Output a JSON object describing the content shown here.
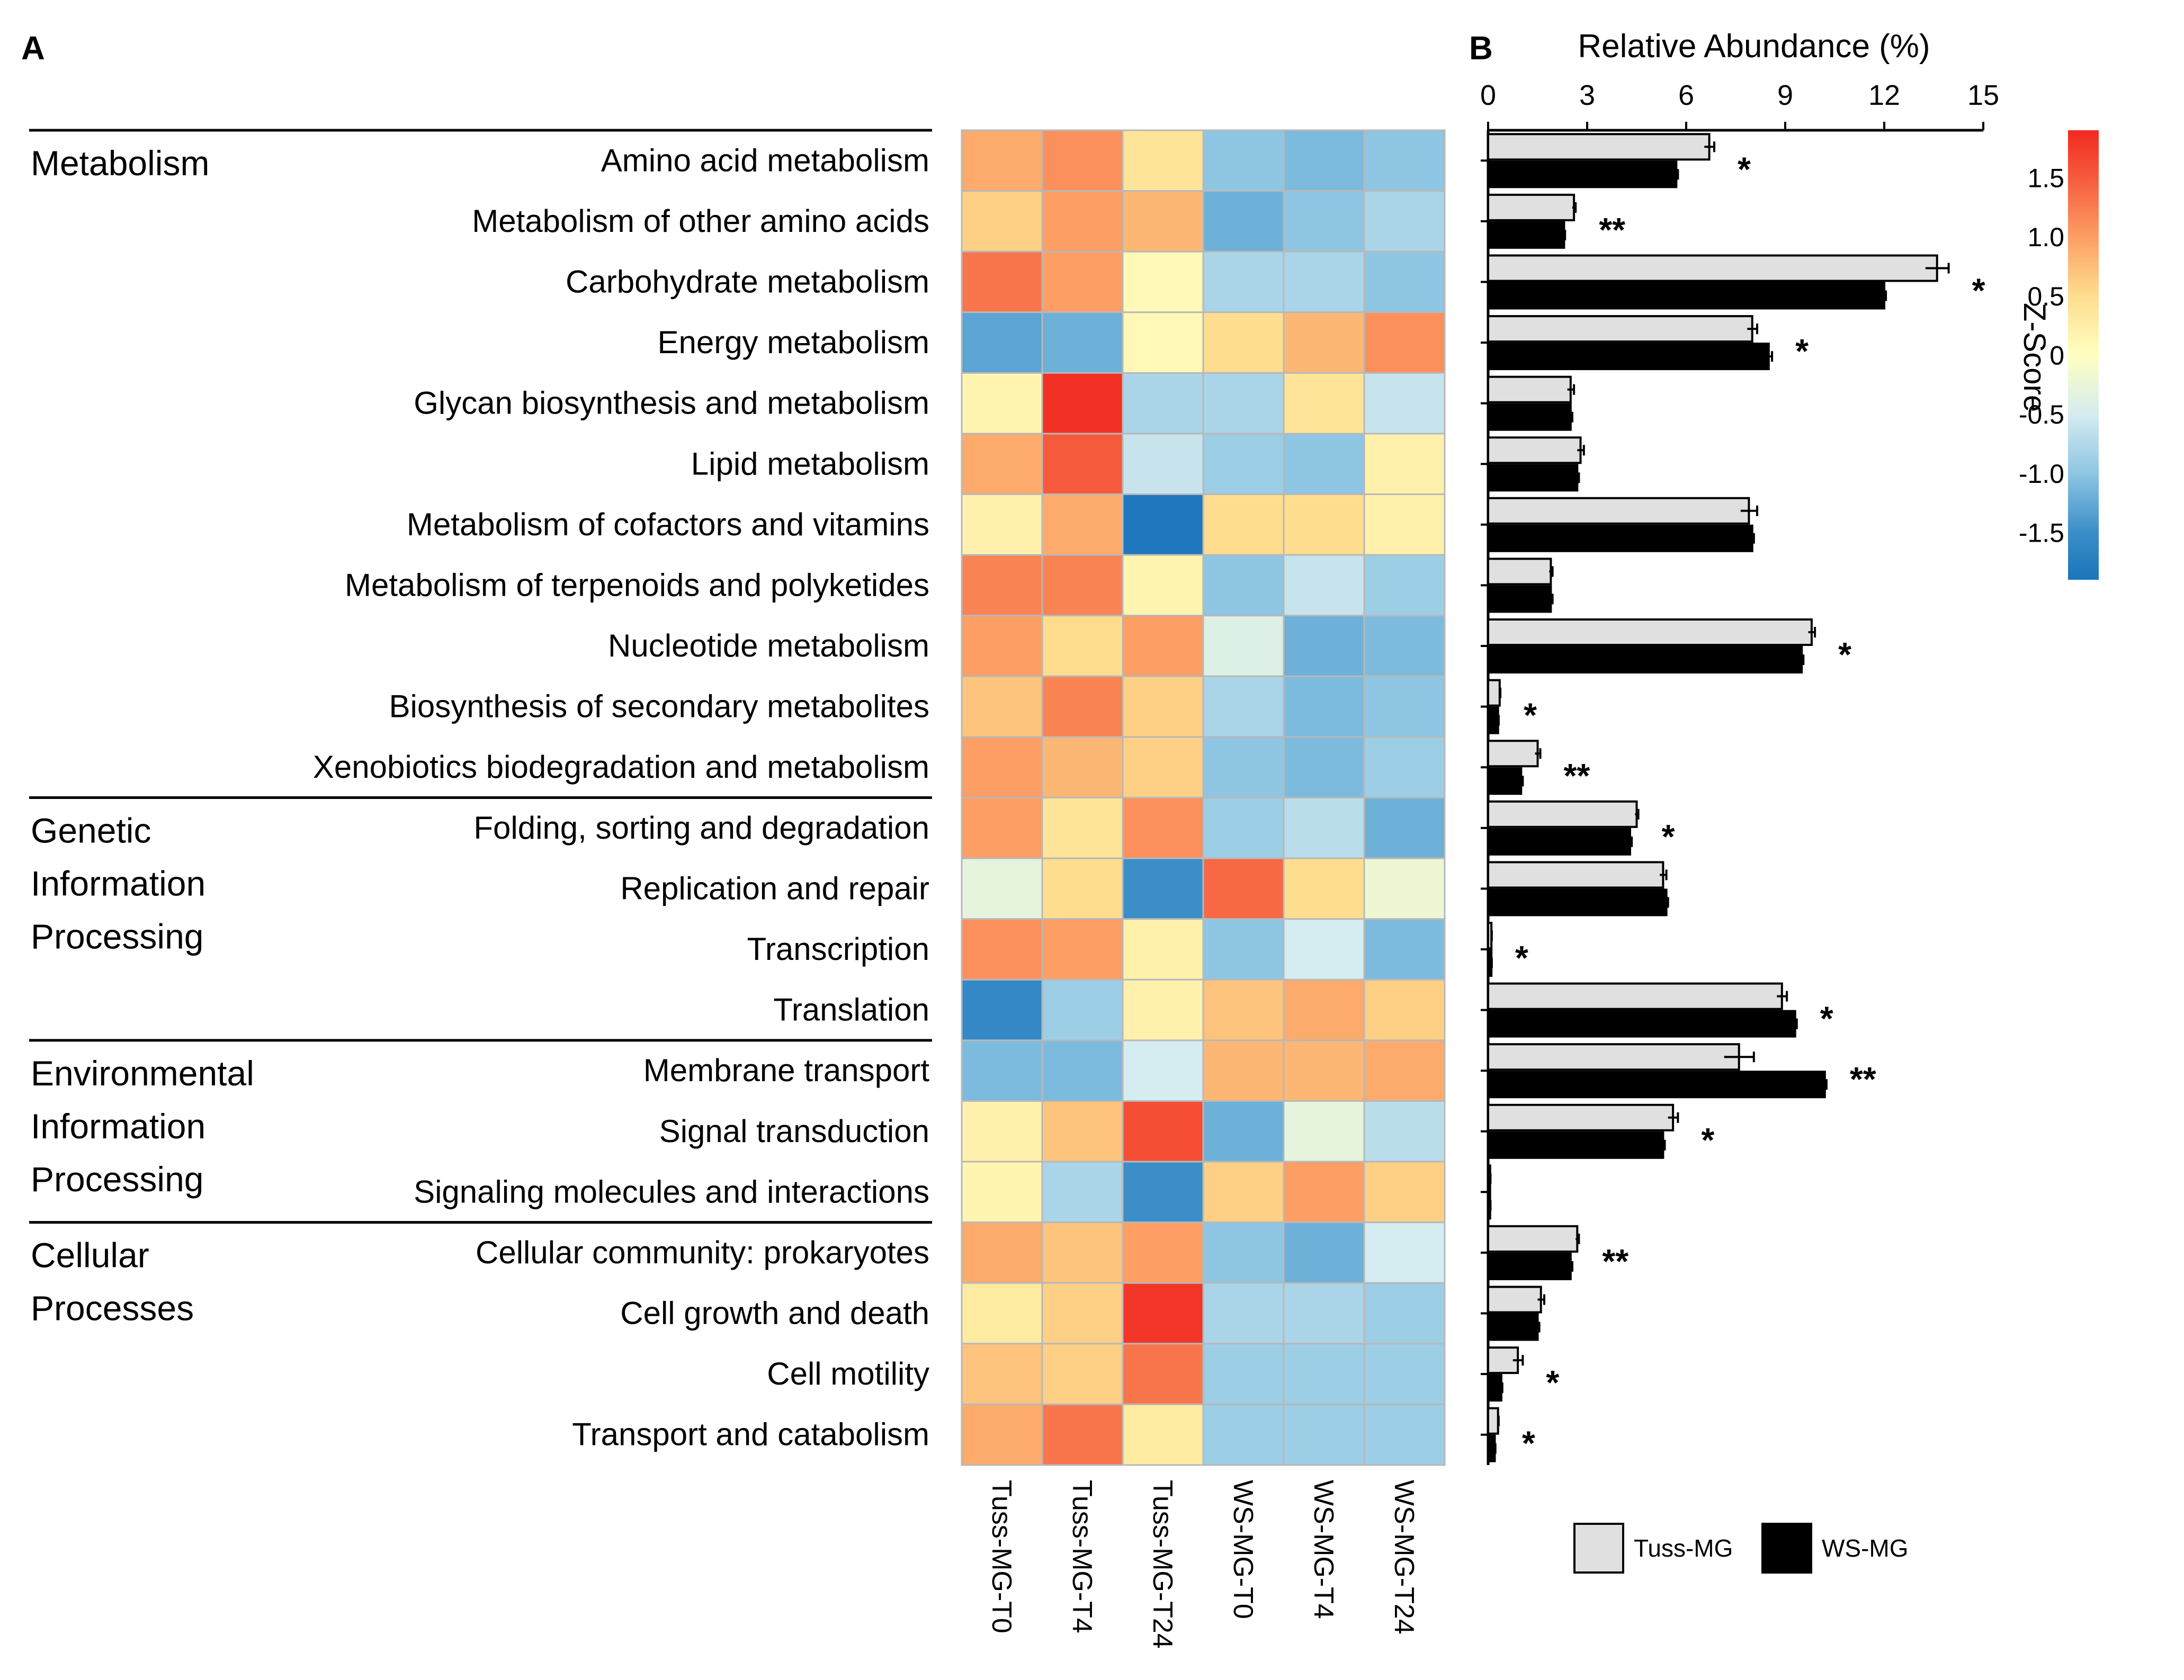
{
  "panels": {
    "a": "A",
    "b": "B"
  },
  "chart_data": [
    {
      "type": "heatmap",
      "panel": "A",
      "colorbar_title": "Z-Score",
      "colorbar_ticks": [
        "1.5",
        "1.0",
        "0.5",
        "0",
        "-0.5",
        "-1.0",
        "-1.5"
      ],
      "colorbar_values": [
        1.5,
        1.0,
        0.5,
        0,
        -0.5,
        -1.0,
        -1.5
      ],
      "colorbar_range": [
        -1.9,
        1.9
      ],
      "colorbar_colors": {
        "low": "#1b75bb",
        "mid": "#ffffc0",
        "high": "#f22a21"
      },
      "columns": [
        "Tuss-MG-T0",
        "Tuss-MG-T4",
        "Tuss-MG-T24",
        "WS-MG-T0",
        "WS-MG-T4",
        "WS-MG-T24"
      ],
      "categories": [
        {
          "name": "Metabolism",
          "lines": [
            "Metabolism"
          ],
          "row_start": 0,
          "row_count": 11
        },
        {
          "name": "Genetic Information Processing",
          "lines": [
            "Genetic",
            "Information",
            "Processing"
          ],
          "row_start": 11,
          "row_count": 4
        },
        {
          "name": "Environmental Information Processing",
          "lines": [
            "Environmental",
            "Information",
            "Processing"
          ],
          "row_start": 15,
          "row_count": 3
        },
        {
          "name": "Cellular Processes",
          "lines": [
            "Cellular",
            "Processes"
          ],
          "row_start": 18,
          "row_count": 4
        }
      ],
      "rows": [
        "Amino acid metabolism",
        "Metabolism of other amino acids",
        "Carbohydrate metabolism",
        "Energy metabolism",
        "Glycan biosynthesis and metabolism",
        "Lipid metabolism",
        "Metabolism of cofactors and vitamins",
        "Metabolism of terpenoids and polyketides",
        "Nucleotide metabolism",
        "Biosynthesis of secondary metabolites",
        "Xenobiotics biodegradation and metabolism",
        "Folding, sorting and degradation",
        "Replication and repair",
        "Transcription",
        "Translation",
        "Membrane transport",
        "Signal transduction",
        "Signaling molecules and interactions",
        "Cellular community: prokaryotes",
        "Cell growth and death",
        "Cell motility",
        "Transport and catabolism"
      ],
      "values": [
        [
          0.9,
          1.1,
          0.4,
          -1.0,
          -1.1,
          -1.0
        ],
        [
          0.6,
          1.0,
          0.8,
          -1.2,
          -1.0,
          -0.8
        ],
        [
          1.3,
          1.0,
          0.1,
          -0.8,
          -0.8,
          -1.0
        ],
        [
          -1.3,
          -1.2,
          0.1,
          0.5,
          0.8,
          1.1
        ],
        [
          0.15,
          1.85,
          -0.8,
          -0.8,
          0.4,
          -0.6
        ],
        [
          0.9,
          1.5,
          -0.6,
          -0.9,
          -1.0,
          0.2
        ],
        [
          0.2,
          0.9,
          -1.85,
          0.5,
          0.5,
          0.2
        ],
        [
          1.2,
          1.2,
          0.15,
          -1.0,
          -0.6,
          -0.9
        ],
        [
          1.0,
          0.5,
          1.0,
          -0.4,
          -1.2,
          -1.1
        ],
        [
          0.7,
          1.2,
          0.6,
          -0.8,
          -1.1,
          -1.0
        ],
        [
          1.0,
          0.8,
          0.6,
          -1.0,
          -1.1,
          -0.9
        ],
        [
          1.0,
          0.4,
          1.1,
          -0.9,
          -0.7,
          -1.2
        ],
        [
          -0.3,
          0.5,
          -1.5,
          1.4,
          0.5,
          -0.2
        ],
        [
          1.1,
          1.0,
          0.2,
          -1.0,
          -0.5,
          -1.1
        ],
        [
          -1.6,
          -0.9,
          0.2,
          0.7,
          0.9,
          0.6
        ],
        [
          -1.1,
          -1.1,
          -0.5,
          0.8,
          0.8,
          0.9
        ],
        [
          0.2,
          0.7,
          1.6,
          -1.2,
          -0.3,
          -0.7
        ],
        [
          0.15,
          -0.8,
          -1.5,
          0.6,
          1.0,
          0.6
        ],
        [
          0.9,
          0.7,
          1.0,
          -1.0,
          -1.2,
          -0.5
        ],
        [
          0.3,
          0.6,
          1.8,
          -0.8,
          -0.8,
          -0.9
        ],
        [
          0.7,
          0.6,
          1.3,
          -0.9,
          -0.9,
          -0.9
        ],
        [
          0.9,
          1.3,
          0.3,
          -0.9,
          -0.9,
          -0.9
        ]
      ]
    },
    {
      "type": "bar",
      "panel": "B",
      "orientation": "horizontal",
      "xlabel": "Relative Abundance (%)",
      "xlim": [
        0,
        15
      ],
      "xticks": [
        0,
        3,
        6,
        9,
        12,
        15
      ],
      "xtick_labels": [
        "0",
        "3",
        "6",
        "9",
        "12",
        "15"
      ],
      "categories": [
        "Amino acid metabolism",
        "Metabolism of other amino acids",
        "Carbohydrate metabolism",
        "Energy metabolism",
        "Glycan biosynthesis and metabolism",
        "Lipid metabolism",
        "Metabolism of cofactors and vitamins",
        "Metabolism of terpenoids and polyketides",
        "Nucleotide metabolism",
        "Biosynthesis of secondary metabolites",
        "Xenobiotics biodegradation and metabolism",
        "Folding, sorting and degradation",
        "Replication and repair",
        "Transcription",
        "Translation",
        "Membrane transport",
        "Signal transduction",
        "Signaling molecules and interactions",
        "Cellular community: prokaryotes",
        "Cell growth and death",
        "Cell motility",
        "Transport and catabolism"
      ],
      "series": [
        {
          "name": "Tuss-MG",
          "color": "#e0e0e0",
          "values": [
            6.7,
            2.6,
            13.6,
            8.0,
            2.5,
            2.8,
            7.9,
            1.9,
            9.8,
            0.35,
            1.5,
            4.5,
            5.3,
            0.1,
            8.9,
            7.6,
            5.6,
            0.06,
            2.7,
            1.6,
            0.9,
            0.3
          ],
          "errors": [
            0.15,
            0.05,
            0.35,
            0.15,
            0.1,
            0.1,
            0.25,
            0.05,
            0.1,
            0.02,
            0.08,
            0.05,
            0.1,
            0.01,
            0.15,
            0.45,
            0.15,
            0.01,
            0.05,
            0.1,
            0.15,
            0.02
          ]
        },
        {
          "name": "WS-MG",
          "color": "#000000",
          "values": [
            5.7,
            2.3,
            12.0,
            8.5,
            2.5,
            2.7,
            8.0,
            1.9,
            9.5,
            0.3,
            1.0,
            4.3,
            5.4,
            0.1,
            9.3,
            10.2,
            5.3,
            0.06,
            2.5,
            1.5,
            0.4,
            0.2
          ],
          "errors": [
            0.05,
            0.03,
            0.05,
            0.1,
            0.05,
            0.05,
            0.05,
            0.05,
            0.05,
            0.02,
            0.05,
            0.05,
            0.05,
            0.01,
            0.05,
            0.05,
            0.05,
            0.01,
            0.05,
            0.05,
            0.03,
            0.02
          ]
        }
      ],
      "significance": [
        "*",
        "**",
        "*",
        "*",
        "",
        "",
        "",
        "",
        "*",
        "*",
        "**",
        "*",
        "",
        "*",
        "*",
        "**",
        "*",
        "",
        "**",
        "",
        "*",
        "*"
      ],
      "legend": [
        "Tuss-MG",
        "WS-MG"
      ]
    }
  ]
}
